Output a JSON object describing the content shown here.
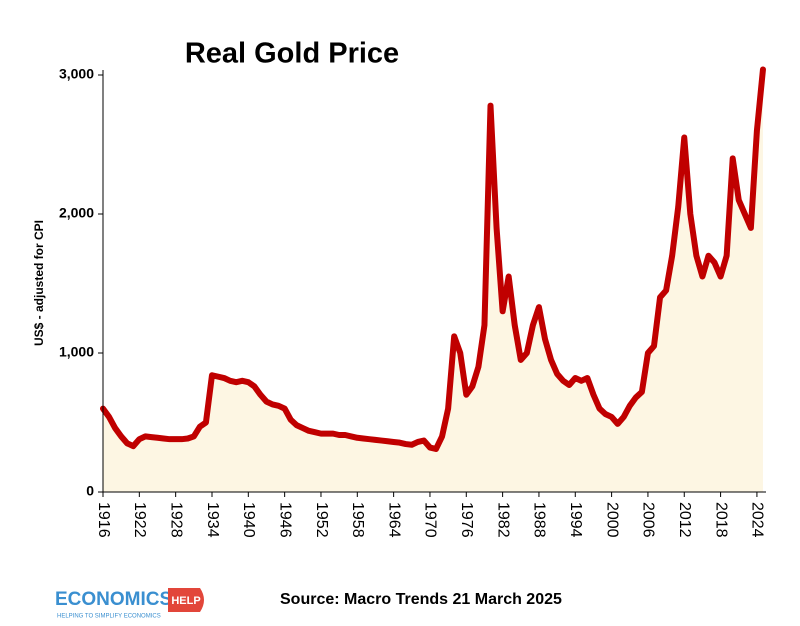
{
  "chart_data": {
    "type": "line",
    "title": "Real Gold Price",
    "y_label": "US$ - adjusted for CPI",
    "x": [
      1916,
      1917,
      1918,
      1919,
      1920,
      1921,
      1922,
      1923,
      1924,
      1925,
      1926,
      1927,
      1928,
      1929,
      1930,
      1931,
      1932,
      1933,
      1934,
      1935,
      1936,
      1937,
      1938,
      1939,
      1940,
      1941,
      1942,
      1943,
      1944,
      1945,
      1946,
      1947,
      1948,
      1949,
      1950,
      1951,
      1952,
      1953,
      1954,
      1955,
      1956,
      1957,
      1958,
      1959,
      1960,
      1961,
      1962,
      1963,
      1964,
      1965,
      1966,
      1967,
      1968,
      1969,
      1970,
      1971,
      1972,
      1973,
      1974,
      1975,
      1976,
      1977,
      1978,
      1979,
      1980,
      1981,
      1982,
      1983,
      1984,
      1985,
      1986,
      1987,
      1988,
      1989,
      1990,
      1991,
      1992,
      1993,
      1994,
      1995,
      1996,
      1997,
      1998,
      1999,
      2000,
      2001,
      2002,
      2003,
      2004,
      2005,
      2006,
      2007,
      2008,
      2009,
      2010,
      2011,
      2012,
      2013,
      2014,
      2015,
      2016,
      2017,
      2018,
      2019,
      2020,
      2021,
      2022,
      2023,
      2024,
      2025
    ],
    "series": [
      {
        "name": "Real Gold Price",
        "color": "#c00000",
        "fill": "#fdf6e3",
        "values": [
          600,
          540,
          460,
          400,
          350,
          330,
          380,
          400,
          395,
          390,
          385,
          380,
          380,
          380,
          385,
          400,
          470,
          500,
          840,
          830,
          820,
          800,
          790,
          800,
          790,
          760,
          700,
          650,
          630,
          620,
          600,
          520,
          480,
          460,
          440,
          430,
          420,
          420,
          420,
          410,
          410,
          400,
          390,
          385,
          380,
          375,
          370,
          365,
          360,
          355,
          345,
          340,
          360,
          370,
          320,
          310,
          400,
          600,
          1120,
          1000,
          700,
          760,
          900,
          1200,
          2780,
          1900,
          1300,
          1550,
          1200,
          950,
          1000,
          1200,
          1330,
          1100,
          950,
          850,
          800,
          770,
          820,
          800,
          820,
          700,
          600,
          560,
          540,
          490,
          540,
          620,
          680,
          720,
          1000,
          1050,
          1400,
          1450,
          1700,
          2050,
          2550,
          2000,
          1700,
          1550,
          1700,
          1650,
          1550,
          1700,
          2400,
          2100,
          2000,
          1900,
          2600,
          3040
        ]
      }
    ],
    "xlim": [
      1916,
      2025.5
    ],
    "xticks": [
      1916,
      1922,
      1928,
      1934,
      1940,
      1946,
      1952,
      1958,
      1964,
      1970,
      1976,
      1982,
      1988,
      1994,
      2000,
      2006,
      2012,
      2018,
      2024
    ],
    "ylim": [
      0,
      3000
    ],
    "yticks": [
      0,
      {
        "value": 1000,
        "label": "1,000"
      },
      {
        "value": 2000,
        "label": "2,000"
      },
      {
        "value": 3000,
        "label": "3,000"
      }
    ],
    "grid": false,
    "source": "Source: Macro Trends 21 March 2025"
  },
  "logo": {
    "name": "ECONOMICS",
    "badge": "HELP",
    "tagline": "HELPING TO SIMPLIFY ECONOMICS"
  }
}
